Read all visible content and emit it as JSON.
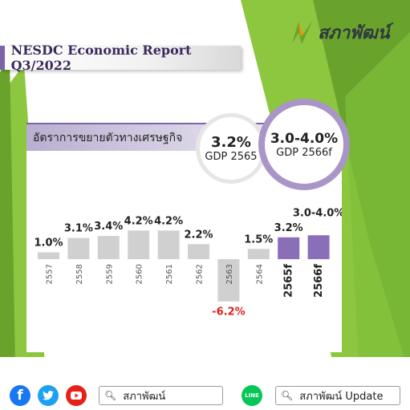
{
  "brand": {
    "name": "สภาพัฒน์"
  },
  "report_title": "NESDC Economic Report Q3/2022",
  "panel_title": "อัตราการขยายตัวทางเศรษฐกิจ",
  "badges": [
    {
      "value": "3.2%",
      "label": "GDP 2565"
    },
    {
      "value": "3.0-4.0%",
      "label": "GDP 2566f"
    }
  ],
  "chart_data": {
    "type": "bar",
    "title": "อัตราการขยายตัวทางเศรษฐกิจ",
    "categories": [
      "2557",
      "2558",
      "2559",
      "2560",
      "2561",
      "2562",
      "2563",
      "2564",
      "2565f",
      "2566f"
    ],
    "values": [
      1.0,
      3.1,
      3.4,
      4.2,
      4.2,
      2.2,
      -6.2,
      1.5,
      3.2,
      3.5
    ],
    "value_labels": [
      "1.0%",
      "3.1%",
      "3.4%",
      "4.2%",
      "4.2%",
      "2.2%",
      "-6.2%",
      "1.5%",
      "3.2%",
      "3.0-4.0%"
    ],
    "forecast_range": {
      "category": "2566f",
      "low": 3.0,
      "high": 4.0
    },
    "colors": {
      "actual": "#d0d0d0",
      "forecast": "#8a6fb8",
      "negative_label": "#e02020"
    },
    "grid": false
  },
  "footer": {
    "social_icons": [
      "facebook-icon",
      "twitter-icon",
      "youtube-icon",
      "line-icon"
    ],
    "search1": "สภาพัฒน์",
    "search2": "สภาพัฒน์ Update"
  }
}
